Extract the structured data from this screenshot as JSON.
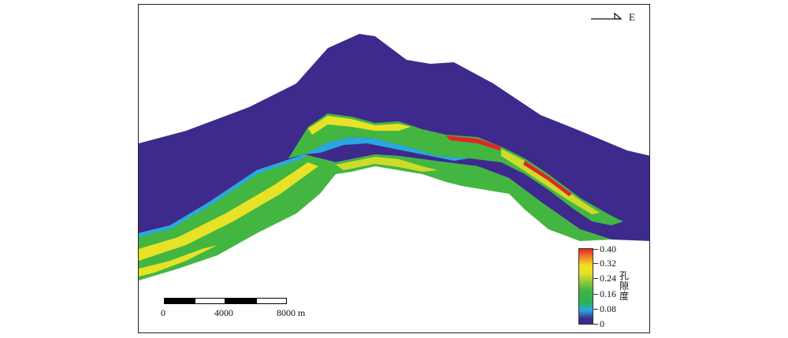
{
  "north_arrow": {
    "label": "E"
  },
  "scale_bar": {
    "unit": "m",
    "ticks": [
      "0",
      "4000",
      "8000 m"
    ]
  },
  "legend": {
    "title": "孔隙度",
    "ticks": [
      "0.40",
      "0.32",
      "0.24",
      "0.16",
      "0.08",
      "0"
    ],
    "colors": [
      "#e0262a",
      "#f0e020",
      "#8cc63f",
      "#43b642",
      "#2aa7e0",
      "#3d2a8c"
    ]
  },
  "colors": {
    "background_body": "#3d2a8c",
    "reservoir_green": "#43b642",
    "reservoir_yellow": "#e8e227",
    "reservoir_cyan": "#2aa7e0",
    "reservoir_red": "#e0262a"
  }
}
